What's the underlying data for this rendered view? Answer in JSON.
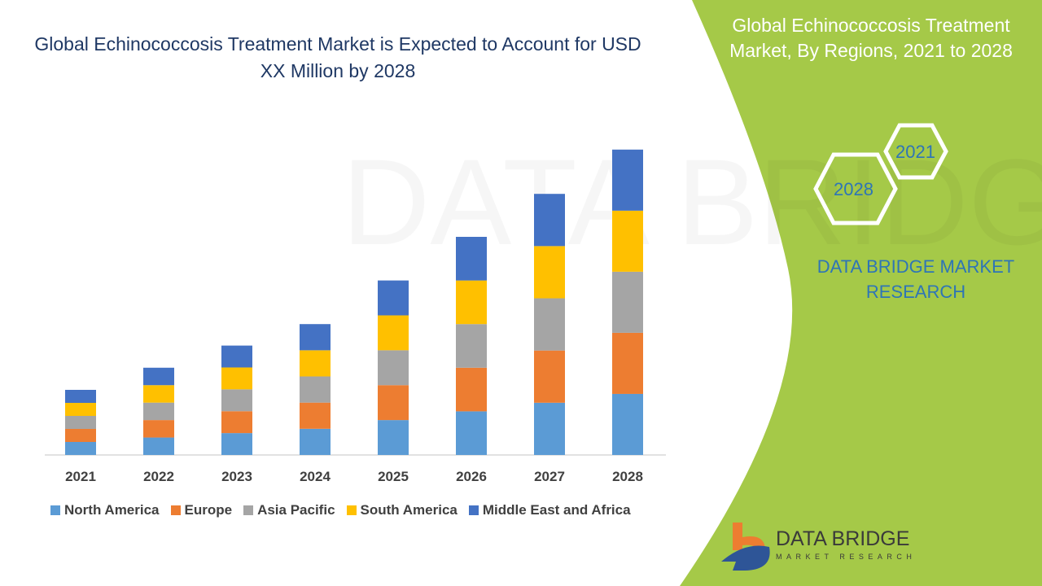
{
  "header": {
    "title": "Global Echinococcosis Treatment Market is Expected to Account for USD XX Million by 2028",
    "side_title": "Global Echinococcosis Treatment Market, By Regions, 2021 to 2028"
  },
  "badges": {
    "year_start": "2021",
    "year_end": "2028"
  },
  "brand": {
    "name": "DATA BRIDGE MARKET RESEARCH",
    "logo_text": "DATA BRIDGE",
    "logo_sub": "MARKET RESEARCH"
  },
  "colors": {
    "panel": "#a5c948",
    "title": "#1f3864",
    "brand_blue": "#2e75b6"
  },
  "chart_data": {
    "type": "bar",
    "stacked": true,
    "title": "",
    "xlabel": "",
    "ylabel": "",
    "y_axis_shown": false,
    "grid": false,
    "legend_position": "bottom",
    "categories": [
      "2021",
      "2022",
      "2023",
      "2024",
      "2025",
      "2026",
      "2027",
      "2028"
    ],
    "series": [
      {
        "name": "North America",
        "color": "#5b9bd5",
        "values": [
          1.0,
          1.34,
          1.68,
          2.01,
          2.68,
          3.35,
          4.01,
          4.69
        ]
      },
      {
        "name": "Europe",
        "color": "#ed7d31",
        "values": [
          1.0,
          1.34,
          1.68,
          2.01,
          2.68,
          3.35,
          4.01,
          4.69
        ]
      },
      {
        "name": "Asia Pacific",
        "color": "#a5a5a5",
        "values": [
          1.0,
          1.34,
          1.68,
          2.01,
          2.68,
          3.35,
          4.01,
          4.69
        ]
      },
      {
        "name": "South America",
        "color": "#ffc000",
        "values": [
          1.0,
          1.34,
          1.68,
          2.01,
          2.68,
          3.35,
          4.01,
          4.69
        ]
      },
      {
        "name": "Middle East and Africa",
        "color": "#4472c4",
        "values": [
          1.0,
          1.34,
          1.68,
          2.01,
          2.68,
          3.35,
          4.01,
          4.69
        ]
      }
    ]
  }
}
